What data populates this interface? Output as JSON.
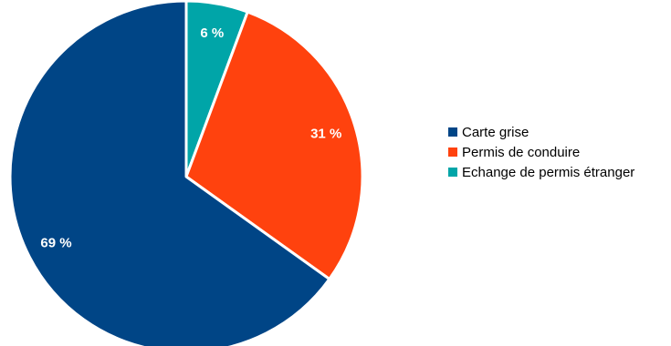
{
  "chart_data": {
    "type": "pie",
    "title": "",
    "slices": [
      {
        "name": "Echange de permis étranger",
        "value": 6,
        "label": "6 %",
        "color": "#00A5A8"
      },
      {
        "name": "Permis de conduire",
        "value": 31,
        "label": "31 %",
        "color": "#FF420E"
      },
      {
        "name": "Carte grise",
        "value": 69,
        "label": "69 %",
        "color": "#004586"
      }
    ],
    "legend": {
      "placement": "right",
      "entries": [
        {
          "name": "Carte grise",
          "color": "#004586"
        },
        {
          "name": "Permis de conduire",
          "color": "#FF420E"
        },
        {
          "name": "Echange de permis étranger",
          "color": "#00A5A8"
        }
      ]
    }
  }
}
